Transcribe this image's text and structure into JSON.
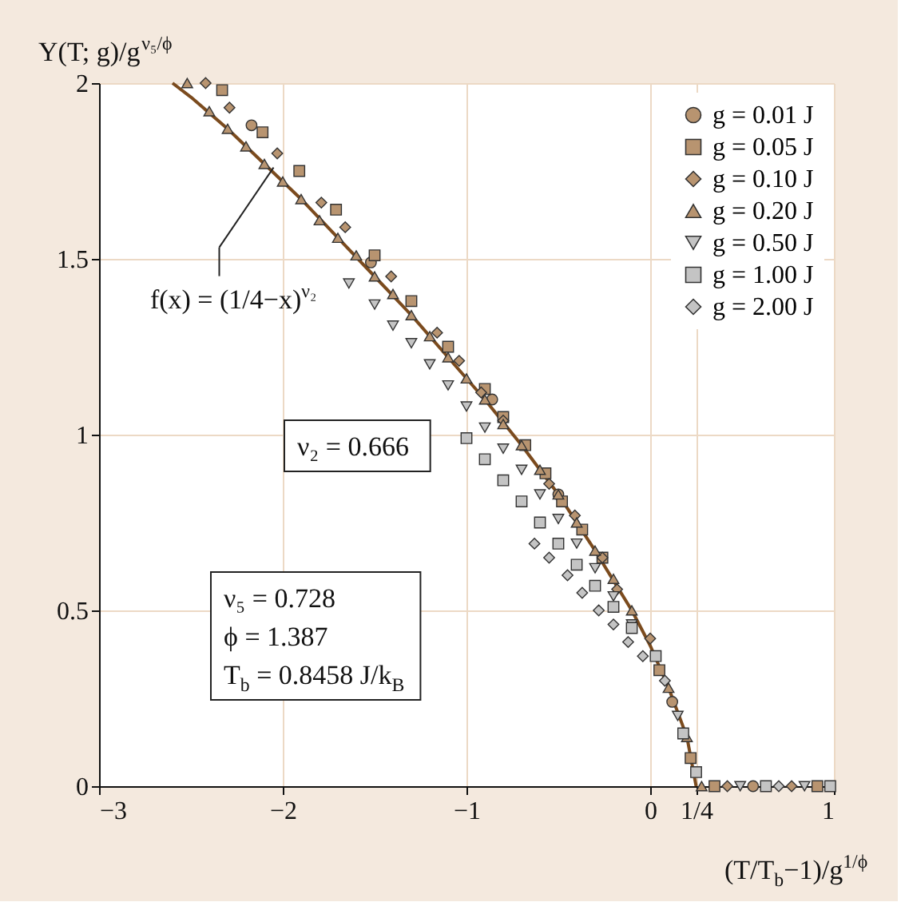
{
  "chart_data": {
    "type": "scatter",
    "xlabel": "(T/T$_{b}$−1)/g$^{1/ϕ}$",
    "ylabel": "Y(T; g)/g$^{ν₅/ϕ}$",
    "xlim": [
      -3,
      1
    ],
    "ylim": [
      0,
      2
    ],
    "xticks": [
      -3,
      -2,
      -1,
      0,
      {
        "value": 0.25,
        "label": "1/4"
      },
      1
    ],
    "yticks": [
      0,
      0.5,
      1,
      1.5,
      2
    ],
    "grid": true,
    "legend": "top right",
    "annotations": [
      {
        "text": "f(x) = (1/4−x)$^{ν₂}$",
        "x": -2.05,
        "y": 1.76
      },
      "ν₂ = 0.666",
      "ν₅ = 0.728",
      "ϕ = 1.387",
      "T$_{b}$ = 0.8458 J/k$_{B}$"
    ],
    "series": [
      {
        "type": "line",
        "color": "#7b4b1e",
        "x": [
          -2.6,
          -2.5,
          -2.3,
          -2.1,
          -1.9,
          -1.7,
          -1.5,
          -1.3,
          -1.1,
          -0.9,
          -0.7,
          -0.5,
          -0.3,
          -0.1,
          0.0,
          0.1,
          0.2,
          0.25
        ],
        "values": [
          2.0,
          1.96,
          1.87,
          1.77,
          1.67,
          1.56,
          1.45,
          1.34,
          1.22,
          1.1,
          0.97,
          0.83,
          0.67,
          0.5,
          0.4,
          0.28,
          0.14,
          0.0
        ]
      },
      {
        "name": "g = 0.01 J",
        "color": "#b89470",
        "marker": "circle",
        "x": [
          -2.17,
          -1.52,
          -0.86,
          -0.5,
          0.12,
          0.56
        ],
        "values": [
          1.88,
          1.49,
          1.1,
          0.83,
          0.24,
          0.0
        ]
      },
      {
        "name": "g = 0.05 J",
        "color": "#b89470",
        "marker": "square",
        "x": [
          -2.33,
          -2.11,
          -1.91,
          -1.71,
          -1.5,
          -1.3,
          -1.1,
          -0.9,
          -0.8,
          -0.68,
          -0.57,
          -0.48,
          -0.37,
          -0.26,
          0.05,
          0.22,
          0.35,
          0.91
        ],
        "values": [
          1.98,
          1.86,
          1.75,
          1.64,
          1.51,
          1.38,
          1.25,
          1.13,
          1.05,
          0.97,
          0.89,
          0.81,
          0.73,
          0.65,
          0.33,
          0.08,
          0.0,
          0.0
        ]
      },
      {
        "name": "g = 0.10 J",
        "color": "#b89470",
        "marker": "diamond",
        "x": [
          -2.42,
          -2.29,
          -2.03,
          -1.79,
          -1.66,
          -1.41,
          -1.16,
          -1.04,
          -0.92,
          -0.8,
          -0.55,
          -0.41,
          -0.26,
          -0.18,
          0.0,
          0.42,
          0.77
        ],
        "values": [
          2.0,
          1.93,
          1.8,
          1.66,
          1.59,
          1.45,
          1.29,
          1.21,
          1.12,
          1.04,
          0.86,
          0.77,
          0.65,
          0.56,
          0.42,
          0.0,
          0.0
        ]
      },
      {
        "name": "g = 0.20 J",
        "color": "#b89470",
        "marker": "triangle",
        "x": [
          -2.52,
          -2.4,
          -2.3,
          -2.2,
          -2.1,
          -2.0,
          -1.9,
          -1.8,
          -1.7,
          -1.6,
          -1.5,
          -1.4,
          -1.3,
          -1.2,
          -1.1,
          -1.0,
          -0.9,
          -0.8,
          -0.7,
          -0.6,
          -0.5,
          -0.4,
          -0.3,
          -0.2,
          -0.1,
          0.1,
          0.2,
          0.28
        ],
        "values": [
          2.0,
          1.92,
          1.87,
          1.82,
          1.77,
          1.72,
          1.67,
          1.61,
          1.56,
          1.51,
          1.45,
          1.4,
          1.34,
          1.28,
          1.22,
          1.16,
          1.1,
          1.03,
          0.97,
          0.9,
          0.83,
          0.75,
          0.67,
          0.59,
          0.5,
          0.28,
          0.14,
          0.0
        ]
      },
      {
        "name": "g = 0.50 J",
        "color": "#c4c4c4",
        "marker": "triangle-down",
        "x": [
          -1.64,
          -1.5,
          -1.4,
          -1.3,
          -1.2,
          -1.1,
          -1.0,
          -0.9,
          -0.8,
          -0.7,
          -0.6,
          -0.5,
          -0.4,
          -0.3,
          -0.2,
          -0.1,
          0.15,
          0.49,
          0.84
        ],
        "values": [
          1.43,
          1.37,
          1.31,
          1.26,
          1.2,
          1.14,
          1.08,
          1.02,
          0.96,
          0.9,
          0.83,
          0.76,
          0.69,
          0.62,
          0.54,
          0.46,
          0.2,
          0.0,
          0.0
        ]
      },
      {
        "name": "g = 1.00 J",
        "color": "#c4c4c4",
        "marker": "square",
        "x": [
          -1.0,
          -0.9,
          -0.8,
          -0.7,
          -0.6,
          -0.5,
          -0.4,
          -0.3,
          -0.2,
          -0.1,
          0.03,
          0.18,
          0.25,
          0.63,
          0.98
        ],
        "values": [
          0.99,
          0.93,
          0.87,
          0.81,
          0.75,
          0.69,
          0.63,
          0.57,
          0.51,
          0.45,
          0.37,
          0.15,
          0.04,
          0.0,
          0.0
        ]
      },
      {
        "name": "g = 2.00 J",
        "color": "#c4c4c4",
        "marker": "diamond",
        "x": [
          -0.63,
          -0.55,
          -0.45,
          -0.37,
          -0.28,
          -0.2,
          -0.12,
          -0.04,
          0.08,
          0.7
        ],
        "values": [
          0.69,
          0.65,
          0.6,
          0.55,
          0.5,
          0.46,
          0.41,
          0.37,
          0.3,
          0.0
        ]
      }
    ]
  }
}
